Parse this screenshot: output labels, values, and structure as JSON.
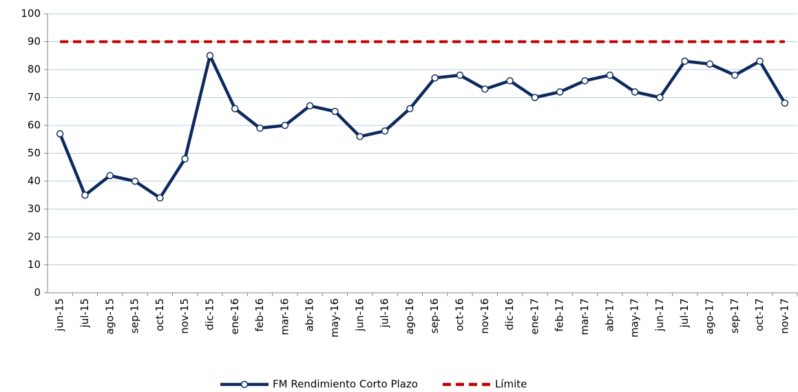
{
  "chart_data": {
    "type": "line",
    "categories": [
      "jun-15",
      "jul-15",
      "ago-15",
      "sep-15",
      "oct-15",
      "nov-15",
      "dic-15",
      "ene-16",
      "feb-16",
      "mar-16",
      "abr-16",
      "may-16",
      "jun-16",
      "jul-16",
      "ago-16",
      "sep-16",
      "oct-16",
      "nov-16",
      "dic-16",
      "ene-17",
      "feb-17",
      "mar-17",
      "abr-17",
      "may-17",
      "jun-17",
      "jul-17",
      "ago-17",
      "sep-17",
      "oct-17",
      "nov-17"
    ],
    "series": [
      {
        "name": "FM Rendimiento Corto Plazo",
        "color": "#0d2a5e",
        "marker": true,
        "dashed": false,
        "values": [
          57,
          35,
          42,
          40,
          34,
          48,
          85,
          66,
          59,
          60,
          67,
          65,
          56,
          58,
          66,
          77,
          78,
          73,
          76,
          70,
          72,
          76,
          78,
          72,
          70,
          83,
          82,
          78,
          83,
          68
        ]
      },
      {
        "name": "Límite",
        "color": "#c00000",
        "marker": false,
        "dashed": true,
        "values": [
          90,
          90,
          90,
          90,
          90,
          90,
          90,
          90,
          90,
          90,
          90,
          90,
          90,
          90,
          90,
          90,
          90,
          90,
          90,
          90,
          90,
          90,
          90,
          90,
          90,
          90,
          90,
          90,
          90,
          90
        ]
      }
    ],
    "ylim": [
      0,
      100
    ],
    "yticks": [
      0,
      10,
      20,
      30,
      40,
      50,
      60,
      70,
      80,
      90,
      100
    ],
    "grid": true,
    "legend": "bottom"
  }
}
